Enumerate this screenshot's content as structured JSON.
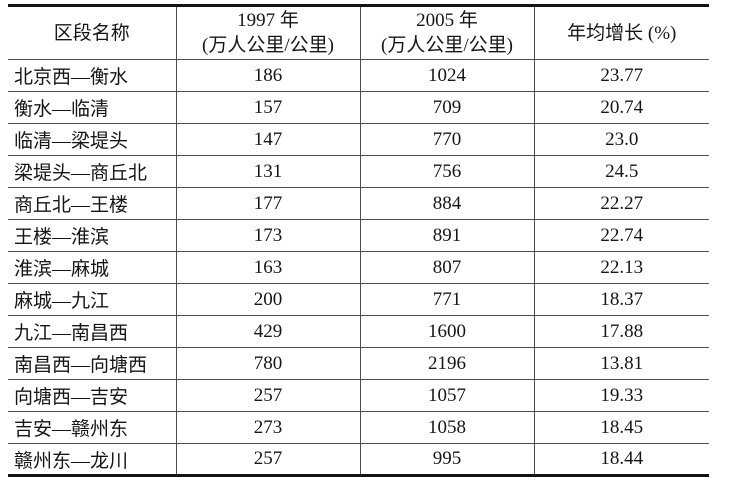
{
  "table": {
    "header": [
      {
        "lines": [
          "区段名称"
        ]
      },
      {
        "lines": [
          "1997 年",
          "(万人公里/公里)"
        ]
      },
      {
        "lines": [
          "2005 年",
          "(万人公里/公里)"
        ]
      },
      {
        "lines": [
          "年均增长 (%)"
        ]
      }
    ],
    "rows": [
      {
        "section": "北京西—衡水",
        "v1997": "186",
        "v2005": "1024",
        "growth": "23.77"
      },
      {
        "section": "衡水—临清",
        "v1997": "157",
        "v2005": "709",
        "growth": "20.74"
      },
      {
        "section": "临清—梁堤头",
        "v1997": "147",
        "v2005": "770",
        "growth": "23.0"
      },
      {
        "section": "梁堤头—商丘北",
        "v1997": "131",
        "v2005": "756",
        "growth": "24.5"
      },
      {
        "section": "商丘北—王楼",
        "v1997": "177",
        "v2005": "884",
        "growth": "22.27"
      },
      {
        "section": "王楼—淮滨",
        "v1997": "173",
        "v2005": "891",
        "growth": "22.74"
      },
      {
        "section": "淮滨—麻城",
        "v1997": "163",
        "v2005": "807",
        "growth": "22.13"
      },
      {
        "section": "麻城—九江",
        "v1997": "200",
        "v2005": "771",
        "growth": "18.37"
      },
      {
        "section": "九江—南昌西",
        "v1997": "429",
        "v2005": "1600",
        "growth": "17.88"
      },
      {
        "section": "南昌西—向塘西",
        "v1997": "780",
        "v2005": "2196",
        "growth": "13.81"
      },
      {
        "section": "向塘西—吉安",
        "v1997": "257",
        "v2005": "1057",
        "growth": "19.33"
      },
      {
        "section": "吉安—赣州东",
        "v1997": "273",
        "v2005": "1058",
        "growth": "18.45"
      },
      {
        "section": "赣州东—龙川",
        "v1997": "257",
        "v2005": "995",
        "growth": "18.44"
      }
    ]
  },
  "colors": {
    "background": "#ffffff",
    "text": "#161616",
    "thick_border": "#131313",
    "thin_border": "#4d4d4d"
  }
}
